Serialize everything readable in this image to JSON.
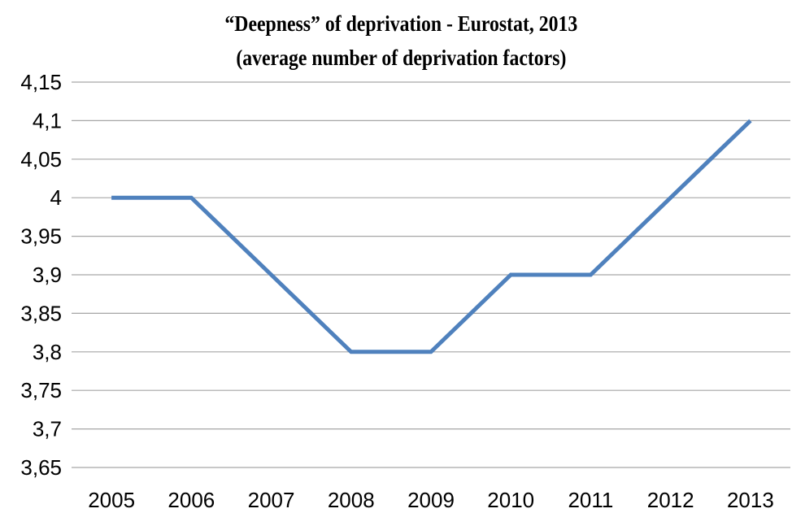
{
  "chart_data": {
    "type": "line",
    "title": "“Deepness” of deprivation - Eurostat, 2013",
    "subtitle": "(average number of deprivation factors)",
    "categories": [
      "2005",
      "2006",
      "2007",
      "2008",
      "2009",
      "2010",
      "2011",
      "2012",
      "2013"
    ],
    "series": [
      {
        "values": [
          4.0,
          4.0,
          3.9,
          3.8,
          3.8,
          3.9,
          3.9,
          4.0,
          4.1
        ]
      }
    ],
    "y_ticks": [
      "3,65",
      "3,7",
      "3,75",
      "3,8",
      "3,85",
      "3,9",
      "3,95",
      "4",
      "4,05",
      "4,1",
      "4,15"
    ],
    "ylim": [
      3.65,
      4.15
    ],
    "grid": true,
    "legend": "none",
    "colors": {
      "series": "#4f81bd",
      "grid": "#a6a6a6"
    }
  }
}
